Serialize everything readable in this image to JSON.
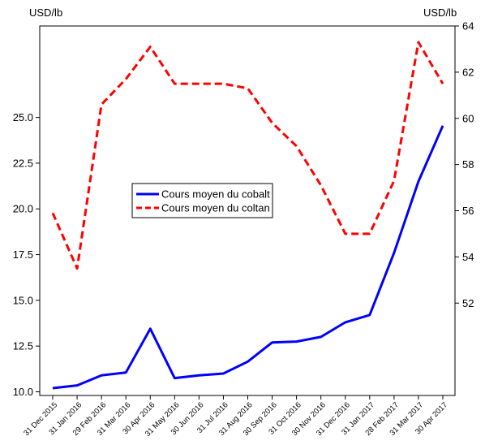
{
  "chart_data": {
    "type": "line",
    "categories": [
      "31 Dec 2015",
      "31 Jan 2016",
      "29 Feb 2016",
      "31 Mar 2016",
      "30 Apr 2016",
      "31 May 2016",
      "30 Jun 2016",
      "31 Jul 2016",
      "31 Aug 2016",
      "30 Sep 2016",
      "31 Oct 2016",
      "30 Nov 2016",
      "31 Dec 2016",
      "31 Jan 2017",
      "28 Feb 2017",
      "31 Mar 2017",
      "30 Apr 2017"
    ],
    "left_axis": {
      "unit": "USD/lb",
      "ylim": [
        9.8,
        30.0
      ],
      "ticks": [
        "10.0",
        "12.5",
        "15.0",
        "17.5",
        "20.0",
        "22.5",
        "25.0"
      ]
    },
    "right_axis": {
      "unit": "USD/lb",
      "ylim": [
        48.0,
        64.0
      ],
      "ticks": [
        "52",
        "54",
        "56",
        "58",
        "60",
        "62",
        "64"
      ]
    },
    "series": [
      {
        "name": "Cours moyen du cobalt",
        "axis": "left",
        "color": "#0000ff",
        "style": "solid",
        "values": [
          10.2,
          10.35,
          10.9,
          11.05,
          13.45,
          10.75,
          10.9,
          11.0,
          11.65,
          12.7,
          12.75,
          13.0,
          13.8,
          14.2,
          17.6,
          21.5,
          24.55
        ]
      },
      {
        "name": "Cours moyen du coltan",
        "axis": "right",
        "color": "#ff0000",
        "style": "dashed",
        "values": [
          55.9,
          53.5,
          60.6,
          61.7,
          63.1,
          61.5,
          61.5,
          61.5,
          61.3,
          59.8,
          58.8,
          57.1,
          55.0,
          55.0,
          57.3,
          63.3,
          61.5
        ]
      }
    ],
    "legend_position": "center-left",
    "grid": false
  }
}
